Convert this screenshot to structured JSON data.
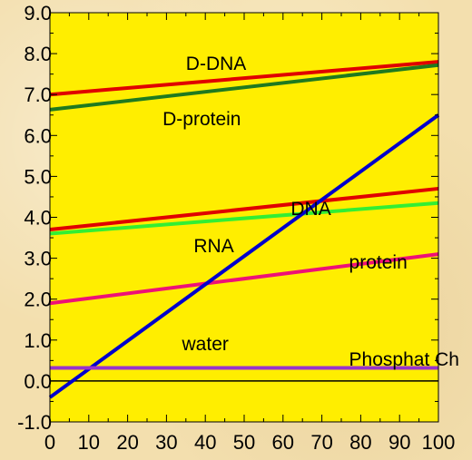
{
  "chart_data": {
    "type": "line",
    "title": "",
    "xlabel": "",
    "ylabel": "",
    "xlim": [
      0,
      100
    ],
    "ylim": [
      -1,
      9
    ],
    "x_ticks": [
      "0",
      "10",
      "20",
      "30",
      "40",
      "50",
      "60",
      "70",
      "80",
      "90",
      "100"
    ],
    "y_ticks": [
      "-1.0",
      "0.0",
      "1.0",
      "2.0",
      "3.0",
      "4.0",
      "5.0",
      "6.0",
      "7.0",
      "8.0",
      "9.0"
    ],
    "y_tick_values": [
      -1,
      0,
      1,
      2,
      3,
      4,
      5,
      6,
      7,
      8,
      9
    ],
    "x_tick_values": [
      0,
      10,
      20,
      30,
      40,
      50,
      60,
      70,
      80,
      90,
      100
    ],
    "plot_background": "#ffee00",
    "zero_line": true,
    "series": [
      {
        "name": "D-DNA",
        "color": "#e00000",
        "x": [
          0,
          100
        ],
        "y": [
          7.0,
          7.8
        ],
        "label_x": 35,
        "label_y": 7.6
      },
      {
        "name": "D-protein",
        "color": "#1f7a1f",
        "x": [
          0,
          100
        ],
        "y": [
          6.63,
          7.72
        ],
        "label_x": 29,
        "label_y": 6.25
      },
      {
        "name": "DNA",
        "color": "#e00000",
        "x": [
          0,
          100
        ],
        "y": [
          3.7,
          4.7
        ],
        "label_x": 62,
        "label_y": 4.05
      },
      {
        "name": "RNA",
        "color": "#33ee33",
        "x": [
          0,
          100
        ],
        "y": [
          3.6,
          4.35
        ],
        "label_x": 37,
        "label_y": 3.15
      },
      {
        "name": "protein",
        "color": "#ee1177",
        "x": [
          0,
          100
        ],
        "y": [
          1.9,
          3.1
        ],
        "label_x": 77,
        "label_y": 2.75
      },
      {
        "name": "water",
        "color": "#0000cc",
        "x": [
          0,
          100
        ],
        "y": [
          -0.4,
          6.5
        ],
        "label_x": 34,
        "label_y": 0.75
      },
      {
        "name": "Phosphat Ch",
        "color": "#9933cc",
        "x": [
          0,
          100
        ],
        "y": [
          0.32,
          0.32
        ],
        "label_x": 77,
        "label_y": 0.38
      }
    ]
  }
}
